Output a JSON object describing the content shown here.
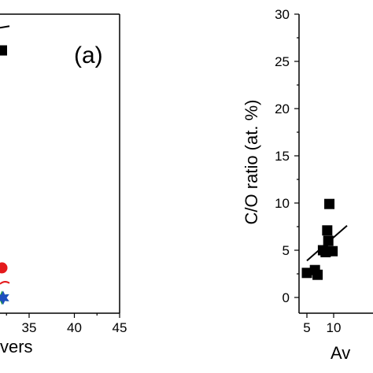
{
  "chart_data": [
    {
      "type": "scatter",
      "panel_label": "(a)",
      "xlabel_fragment": "vers",
      "x_ticks": [
        "35",
        "40",
        "45"
      ],
      "xlim": [
        27,
        45
      ],
      "series": [
        {
          "marker": "square",
          "color": "#000000",
          "points": [
            [
              32,
              29
            ]
          ]
        },
        {
          "marker": "circle",
          "color": "#e41a1c",
          "points": [
            [
              32,
              5
            ]
          ]
        },
        {
          "marker": "star",
          "color": "#1a9a3c",
          "points": [
            [
              32,
              1.7
            ]
          ]
        },
        {
          "marker": "star",
          "color": "#1f4fbf",
          "points": [
            [
              32,
              1.7
            ]
          ]
        }
      ],
      "ylim": [
        0,
        33
      ],
      "fragments": [
        {
          "kind": "dash",
          "color": "#000000",
          "y": 31.5
        },
        {
          "kind": "arc",
          "color": "#e41a1c",
          "y": 3.4
        }
      ]
    },
    {
      "type": "scatter",
      "ylabel": "C/O ratio (at. %)",
      "xlabel_fragment": "Av",
      "x_ticks": [
        "5",
        "10"
      ],
      "y_ticks": [
        "0",
        "5",
        "10",
        "15",
        "20",
        "25",
        "30"
      ],
      "xlim": [
        4.3,
        12.5
      ],
      "ylim": [
        0,
        30
      ],
      "series": [
        {
          "marker": "square",
          "color": "#000000",
          "points": [
            [
              5,
              2.6
            ],
            [
              6.5,
              2.9
            ],
            [
              7,
              2.4
            ],
            [
              8,
              5.0
            ],
            [
              8.5,
              4.8
            ],
            [
              8.8,
              7.1
            ],
            [
              9,
              6.0
            ],
            [
              9.2,
              9.9
            ],
            [
              9.8,
              4.9
            ]
          ]
        }
      ],
      "fit_line": {
        "x": [
          5,
          12.5
        ],
        "y": [
          3.9,
          7.6
        ]
      }
    }
  ]
}
